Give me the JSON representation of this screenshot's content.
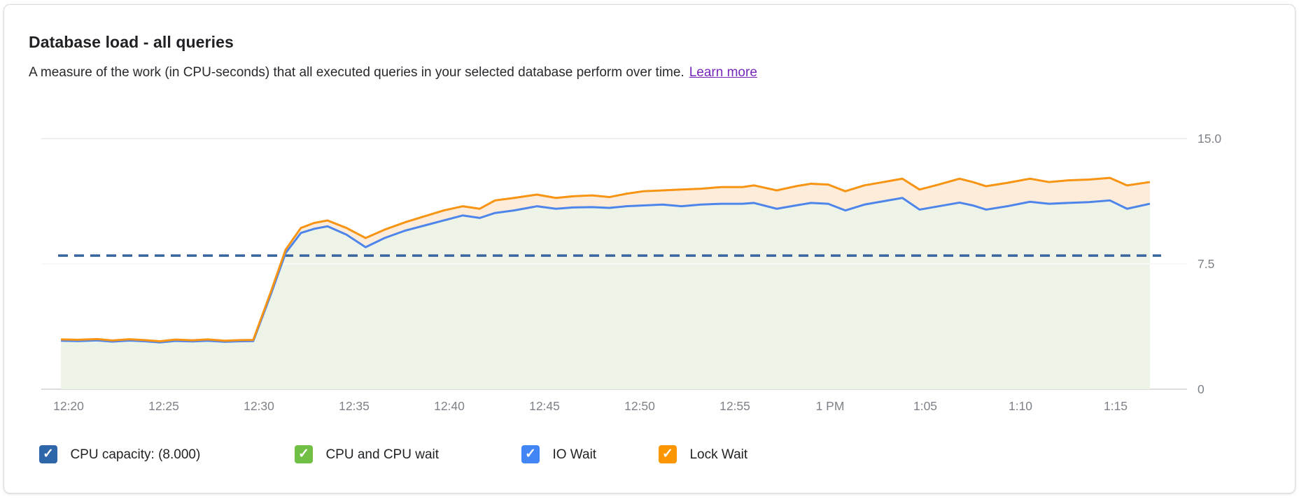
{
  "card": {
    "title": "Database load - all queries",
    "subtitle": "A measure of the work (in CPU-seconds) that all executed queries in your selected database perform over time.",
    "learn_more": "Learn more"
  },
  "colors": {
    "blue_line": "#4e85ea",
    "orange_line": "#f79413",
    "green_fill": "#eef3e8",
    "orange_fill": "#fdecda",
    "capacity_line": "#38659f",
    "grid": "#efefef",
    "axis": "#dcdcdc",
    "tick_text": "#7d8288",
    "link": "#7627bb",
    "legend_capacity": "#2d66a9",
    "legend_green": "#71bf44",
    "legend_blue": "#4285f4",
    "legend_orange": "#fb9600"
  },
  "chart_data": {
    "type": "area",
    "title": "Database load - all queries",
    "value_unit": "CPU-seconds",
    "ylim": [
      0,
      15
    ],
    "y_ticks": [
      {
        "label": "15.0",
        "v": 15
      },
      {
        "label": "7.5",
        "v": 7.5
      },
      {
        "label": "0",
        "v": 0
      }
    ],
    "x_ticks": [
      {
        "label": "12:20",
        "t": 20
      },
      {
        "label": "12:25",
        "t": 25
      },
      {
        "label": "12:30",
        "t": 30
      },
      {
        "label": "12:35",
        "t": 35
      },
      {
        "label": "12:40",
        "t": 40
      },
      {
        "label": "12:45",
        "t": 45
      },
      {
        "label": "12:50",
        "t": 50
      },
      {
        "label": "12:55",
        "t": 55
      },
      {
        "label": "1 PM",
        "t": 60
      },
      {
        "label": "1:05",
        "t": 65
      },
      {
        "label": "1:10",
        "t": 70
      },
      {
        "label": "1:15",
        "t": 75
      }
    ],
    "x_unit": "minutes after 12:00",
    "capacity": {
      "label": "CPU capacity",
      "value": 8.0
    },
    "x": [
      19.6,
      20.5,
      21.5,
      22.3,
      23.2,
      24.0,
      24.8,
      25.6,
      26.5,
      27.3,
      28.2,
      29.0,
      29.7,
      30.6,
      31.4,
      32.2,
      32.9,
      33.6,
      34.6,
      35.6,
      36.6,
      37.7,
      38.7,
      39.7,
      40.7,
      41.6,
      42.4,
      43.4,
      44.6,
      45.6,
      46.5,
      47.5,
      48.4,
      49.3,
      50.2,
      51.2,
      52.2,
      53.2,
      54.3,
      55.4,
      56.0,
      57.2,
      58.2,
      59.0,
      59.9,
      60.8,
      61.8,
      62.8,
      63.8,
      64.7,
      65.7,
      66.8,
      67.5,
      68.2,
      69.3,
      70.5,
      71.5,
      72.5,
      73.6,
      74.7,
      75.6,
      76.8
    ],
    "series": [
      {
        "name": "CPU and CPU wait + IO Wait (stack top)",
        "values": [
          2.9,
          2.88,
          2.92,
          2.85,
          2.91,
          2.87,
          2.8,
          2.89,
          2.86,
          2.9,
          2.84,
          2.87,
          2.88,
          5.6,
          8.15,
          9.35,
          9.6,
          9.75,
          9.25,
          8.5,
          9.05,
          9.5,
          9.8,
          10.1,
          10.4,
          10.25,
          10.55,
          10.7,
          10.95,
          10.8,
          10.88,
          10.9,
          10.85,
          10.95,
          11.0,
          11.05,
          10.95,
          11.05,
          11.1,
          11.1,
          11.15,
          10.8,
          11.0,
          11.15,
          11.1,
          10.7,
          11.05,
          11.25,
          11.45,
          10.75,
          10.95,
          11.17,
          11.0,
          10.75,
          10.95,
          11.22,
          11.1,
          11.15,
          11.2,
          11.3,
          10.8,
          11.1
        ]
      },
      {
        "name": "Total load incl. Lock Wait (stack top)",
        "values": [
          2.98,
          2.96,
          3.0,
          2.92,
          2.99,
          2.94,
          2.87,
          2.97,
          2.93,
          2.98,
          2.9,
          2.94,
          2.95,
          5.75,
          8.35,
          9.65,
          9.95,
          10.1,
          9.65,
          9.05,
          9.55,
          10.0,
          10.35,
          10.7,
          10.95,
          10.8,
          11.3,
          11.45,
          11.65,
          11.45,
          11.55,
          11.6,
          11.5,
          11.7,
          11.85,
          11.9,
          11.95,
          12.0,
          12.1,
          12.1,
          12.2,
          11.9,
          12.15,
          12.3,
          12.25,
          11.85,
          12.2,
          12.4,
          12.6,
          11.95,
          12.25,
          12.6,
          12.4,
          12.15,
          12.35,
          12.6,
          12.4,
          12.5,
          12.55,
          12.65,
          12.2,
          12.4
        ]
      }
    ]
  },
  "legend": {
    "items": [
      {
        "label": "CPU capacity: (8.000)",
        "color_key": "legend_capacity",
        "checked": true
      },
      {
        "label": "CPU and CPU wait",
        "color_key": "legend_green",
        "checked": true
      },
      {
        "label": "IO Wait",
        "color_key": "legend_blue",
        "checked": true
      },
      {
        "label": "Lock Wait",
        "color_key": "legend_orange",
        "checked": true
      }
    ]
  }
}
